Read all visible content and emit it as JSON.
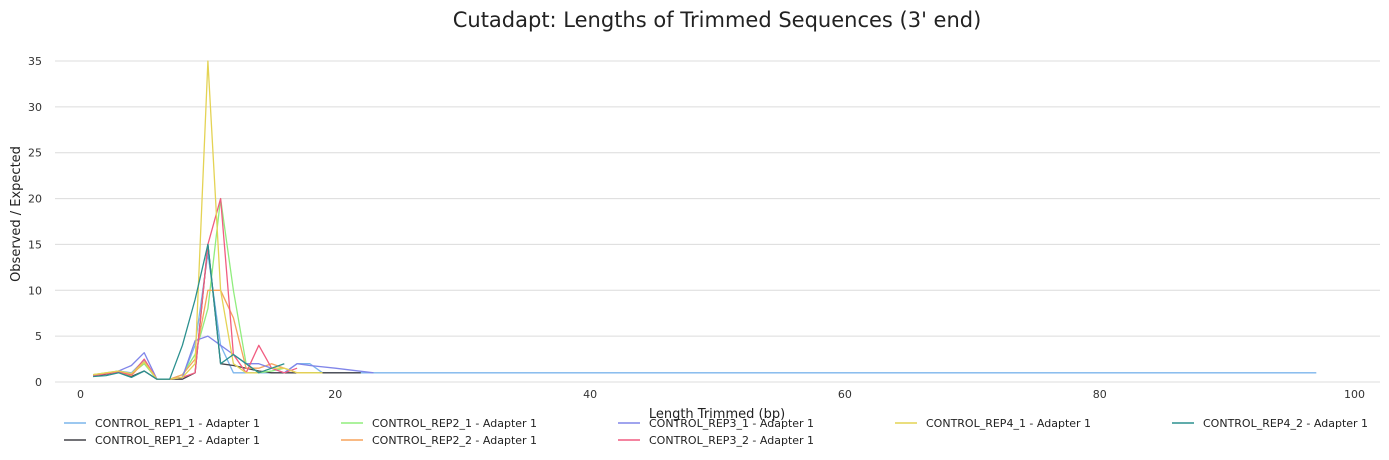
{
  "chart_data": {
    "type": "line",
    "title": "Cutadapt: Lengths of Trimmed Sequences (3' end)",
    "xlabel": "Length Trimmed (bp)",
    "ylabel": "Observed / Expected",
    "xlim": [
      -2,
      102
    ],
    "ylim": [
      0,
      35
    ],
    "xticks": [
      0,
      20,
      40,
      60,
      80,
      100
    ],
    "yticks": [
      0,
      5,
      10,
      15,
      20,
      25,
      30,
      35
    ],
    "grid": "horizontal",
    "legend": "bottom",
    "series": [
      {
        "name": "CONTROL_REP1_1 - Adapter 1",
        "color": "#7cb5ec",
        "x": [
          1,
          3,
          4,
          5,
          6,
          7,
          8,
          9,
          10,
          11,
          12,
          13,
          14,
          15,
          16,
          17,
          18,
          19,
          20,
          21,
          22,
          23,
          24,
          30,
          40,
          50,
          60,
          70,
          80,
          90,
          97
        ],
        "y": [
          0.7,
          1.2,
          1.0,
          2.4,
          0.3,
          0.3,
          0.5,
          4.0,
          14.0,
          4.0,
          1.0,
          1.0,
          1.0,
          1.0,
          1.0,
          2.0,
          2.0,
          1.0,
          1.0,
          1.0,
          1.0,
          1.0,
          1.0,
          1.0,
          1.0,
          1.0,
          1.0,
          1.0,
          1.0,
          1.0,
          1.0
        ]
      },
      {
        "name": "CONTROL_REP1_2 - Adapter 1",
        "color": "#434348",
        "x": [
          1,
          3,
          4,
          5,
          6,
          7,
          8,
          9,
          10,
          11,
          12,
          13,
          14,
          15,
          16,
          17,
          18,
          19,
          20,
          21,
          22
        ],
        "y": [
          0.6,
          1.1,
          0.6,
          1.2,
          0.3,
          0.3,
          0.3,
          1.0,
          15.0,
          2.0,
          1.8,
          1.5,
          1.2,
          1.0,
          1.0,
          1.0,
          1.0,
          1.0,
          1.0,
          1.0,
          1.0
        ]
      },
      {
        "name": "CONTROL_REP2_1 - Adapter 1",
        "color": "#90ed7d",
        "x": [
          1,
          3,
          4,
          5,
          6,
          7,
          8,
          9,
          10,
          11,
          12,
          13,
          14,
          15,
          16,
          17,
          18,
          19
        ],
        "y": [
          0.8,
          1.2,
          0.9,
          2.0,
          0.3,
          0.3,
          0.8,
          3.0,
          8.0,
          20.0,
          10.0,
          2.0,
          1.0,
          1.2,
          1.5,
          1.0,
          1.0,
          1.0
        ]
      },
      {
        "name": "CONTROL_REP2_2 - Adapter 1",
        "color": "#f7a35c",
        "x": [
          1,
          3,
          4,
          5,
          6,
          7,
          8,
          9,
          10,
          11,
          12,
          13,
          14,
          15,
          16,
          17,
          18
        ],
        "y": [
          0.8,
          1.1,
          0.7,
          2.2,
          0.3,
          0.3,
          0.8,
          2.5,
          10.0,
          10.0,
          7.0,
          1.5,
          1.5,
          2.0,
          1.5,
          1.0,
          1.0
        ]
      },
      {
        "name": "CONTROL_REP3_1 - Adapter 1",
        "color": "#8085e9",
        "x": [
          1,
          3,
          4,
          5,
          6,
          7,
          8,
          9,
          10,
          11,
          12,
          13,
          14,
          15,
          16,
          17,
          18,
          20,
          23
        ],
        "y": [
          0.7,
          1.2,
          1.8,
          3.2,
          0.3,
          0.3,
          0.5,
          4.5,
          5.0,
          4.0,
          3.0,
          2.0,
          2.0,
          1.5,
          1.0,
          2.0,
          1.8,
          1.5,
          1.0
        ]
      },
      {
        "name": "CONTROL_REP3_2 - Adapter 1",
        "color": "#f15c80",
        "x": [
          1,
          3,
          4,
          5,
          6,
          7,
          8,
          9,
          10,
          11,
          12,
          13,
          14,
          15,
          16,
          17
        ],
        "y": [
          0.7,
          1.1,
          0.8,
          2.5,
          0.3,
          0.3,
          0.5,
          1.0,
          15.0,
          20.0,
          3.0,
          1.0,
          4.0,
          1.5,
          1.0,
          1.5
        ]
      },
      {
        "name": "CONTROL_REP4_1 - Adapter 1",
        "color": "#e4d354",
        "x": [
          1,
          3,
          4,
          5,
          6,
          7,
          8,
          9,
          10,
          11,
          12,
          13,
          14,
          15,
          16,
          17,
          18,
          19
        ],
        "y": [
          0.8,
          1.2,
          0.9,
          2.2,
          0.3,
          0.3,
          0.5,
          2.0,
          35.0,
          10.0,
          2.0,
          1.0,
          1.0,
          1.5,
          1.5,
          1.0,
          1.0,
          1.0
        ]
      },
      {
        "name": "CONTROL_REP4_2 - Adapter 1",
        "color": "#2b908f",
        "x": [
          1,
          2,
          3,
          4,
          5,
          6,
          7,
          8,
          9,
          10,
          11,
          12,
          13,
          14,
          15,
          16
        ],
        "y": [
          0.6,
          0.7,
          1.0,
          0.5,
          1.2,
          0.3,
          0.3,
          4.0,
          9.0,
          15.0,
          2.0,
          3.0,
          2.0,
          1.0,
          1.5,
          2.0
        ]
      }
    ]
  }
}
